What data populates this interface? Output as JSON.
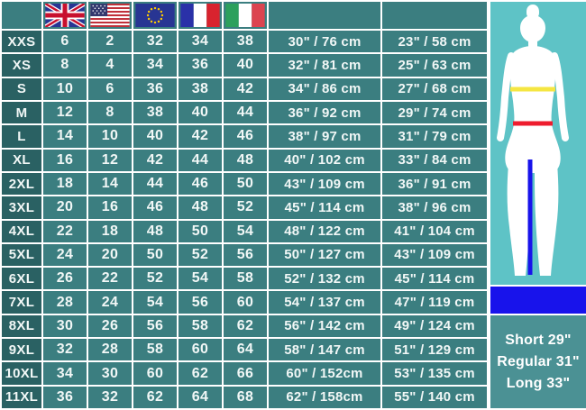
{
  "colors": {
    "table_cell_teal": "#3B7E80",
    "row_label_teal": "#2A6163",
    "grid_white": "#FFFFFF",
    "chest_header_yellow": "#F8ED4F",
    "waist_header_red": "#FB0B16",
    "figure_panel_bg": "#5EC3C6",
    "inseam_legend_blue": "#1813EB",
    "leg_panel_teal": "#4B9194",
    "text_white": "#FFFFFF",
    "chest_line_yellow": "#F5E642",
    "waist_line_red": "#EE1C2E",
    "inseam_line_blue": "#1813EB"
  },
  "header": {
    "corner_label": "",
    "flag_icons": [
      "uk-flag",
      "us-flag",
      "eu-flag",
      "france-flag",
      "italy-flag"
    ]
  },
  "chart_data": {
    "type": "table",
    "column_headers": [
      {
        "type": "blank"
      },
      {
        "type": "flag",
        "name": "uk-flag"
      },
      {
        "type": "flag",
        "name": "us-flag"
      },
      {
        "type": "flag",
        "name": "eu-flag"
      },
      {
        "type": "flag",
        "name": "france-flag"
      },
      {
        "type": "flag",
        "name": "italy-flag"
      },
      {
        "type": "color-block",
        "color": "#F8ED4F",
        "meaning": "chest-measurement"
      },
      {
        "type": "color-block",
        "color": "#FB0B16",
        "meaning": "waist-measurement"
      }
    ],
    "rows": [
      {
        "size": "XXS",
        "uk": "6",
        "us": "2",
        "eu": "32",
        "fr": "34",
        "it": "38",
        "chest": "30\" / 76 cm",
        "waist": "23\" / 58 cm"
      },
      {
        "size": "XS",
        "uk": "8",
        "us": "4",
        "eu": "34",
        "fr": "36",
        "it": "40",
        "chest": "32\" / 81 cm",
        "waist": "25\" / 63 cm"
      },
      {
        "size": "S",
        "uk": "10",
        "us": "6",
        "eu": "36",
        "fr": "38",
        "it": "42",
        "chest": "34\" / 86 cm",
        "waist": "27\" / 68 cm"
      },
      {
        "size": "M",
        "uk": "12",
        "us": "8",
        "eu": "38",
        "fr": "40",
        "it": "44",
        "chest": "36\" / 92 cm",
        "waist": "29\" / 74 cm"
      },
      {
        "size": "L",
        "uk": "14",
        "us": "10",
        "eu": "40",
        "fr": "42",
        "it": "46",
        "chest": "38\" / 97 cm",
        "waist": "31\" / 79 cm"
      },
      {
        "size": "XL",
        "uk": "16",
        "us": "12",
        "eu": "42",
        "fr": "44",
        "it": "48",
        "chest": "40\" / 102 cm",
        "waist": "33\" / 84 cm"
      },
      {
        "size": "2XL",
        "uk": "18",
        "us": "14",
        "eu": "44",
        "fr": "46",
        "it": "50",
        "chest": "43\" / 109 cm",
        "waist": "36\" / 91 cm"
      },
      {
        "size": "3XL",
        "uk": "20",
        "us": "16",
        "eu": "46",
        "fr": "48",
        "it": "52",
        "chest": "45\" / 114 cm",
        "waist": "38\" / 96 cm"
      },
      {
        "size": "4XL",
        "uk": "22",
        "us": "18",
        "eu": "48",
        "fr": "50",
        "it": "54",
        "chest": "48\" / 122 cm",
        "waist": "41\" / 104 cm"
      },
      {
        "size": "5XL",
        "uk": "24",
        "us": "20",
        "eu": "50",
        "fr": "52",
        "it": "56",
        "chest": "50\" / 127 cm",
        "waist": "43\" / 109 cm"
      },
      {
        "size": "6XL",
        "uk": "26",
        "us": "22",
        "eu": "52",
        "fr": "54",
        "it": "58",
        "chest": "52\" / 132 cm",
        "waist": "45\" / 114 cm"
      },
      {
        "size": "7XL",
        "uk": "28",
        "us": "24",
        "eu": "54",
        "fr": "56",
        "it": "60",
        "chest": "54\" / 137 cm",
        "waist": "47\" / 119 cm"
      },
      {
        "size": "8XL",
        "uk": "30",
        "us": "26",
        "eu": "56",
        "fr": "58",
        "it": "62",
        "chest": "56\" / 142 cm",
        "waist": "49\" / 124 cm"
      },
      {
        "size": "9XL",
        "uk": "32",
        "us": "28",
        "eu": "58",
        "fr": "60",
        "it": "64",
        "chest": "58\" / 147 cm",
        "waist": "51\" / 129 cm"
      },
      {
        "size": "10XL",
        "uk": "34",
        "us": "30",
        "eu": "60",
        "fr": "62",
        "it": "66",
        "chest": "60\" / 152cm",
        "waist": "53\" / 135 cm"
      },
      {
        "size": "11XL",
        "uk": "36",
        "us": "32",
        "eu": "62",
        "fr": "64",
        "it": "68",
        "chest": "62\" / 158cm",
        "waist": "55\" / 140 cm"
      }
    ]
  },
  "figure": {
    "silhouette": "female-body-front",
    "chest_line_color": "#F5E642",
    "waist_line_color": "#EE1C2E",
    "inseam_line_color": "#1813EB"
  },
  "leg_lengths": [
    "Short 29\"",
    "Regular 31\"",
    "Long 33\""
  ]
}
